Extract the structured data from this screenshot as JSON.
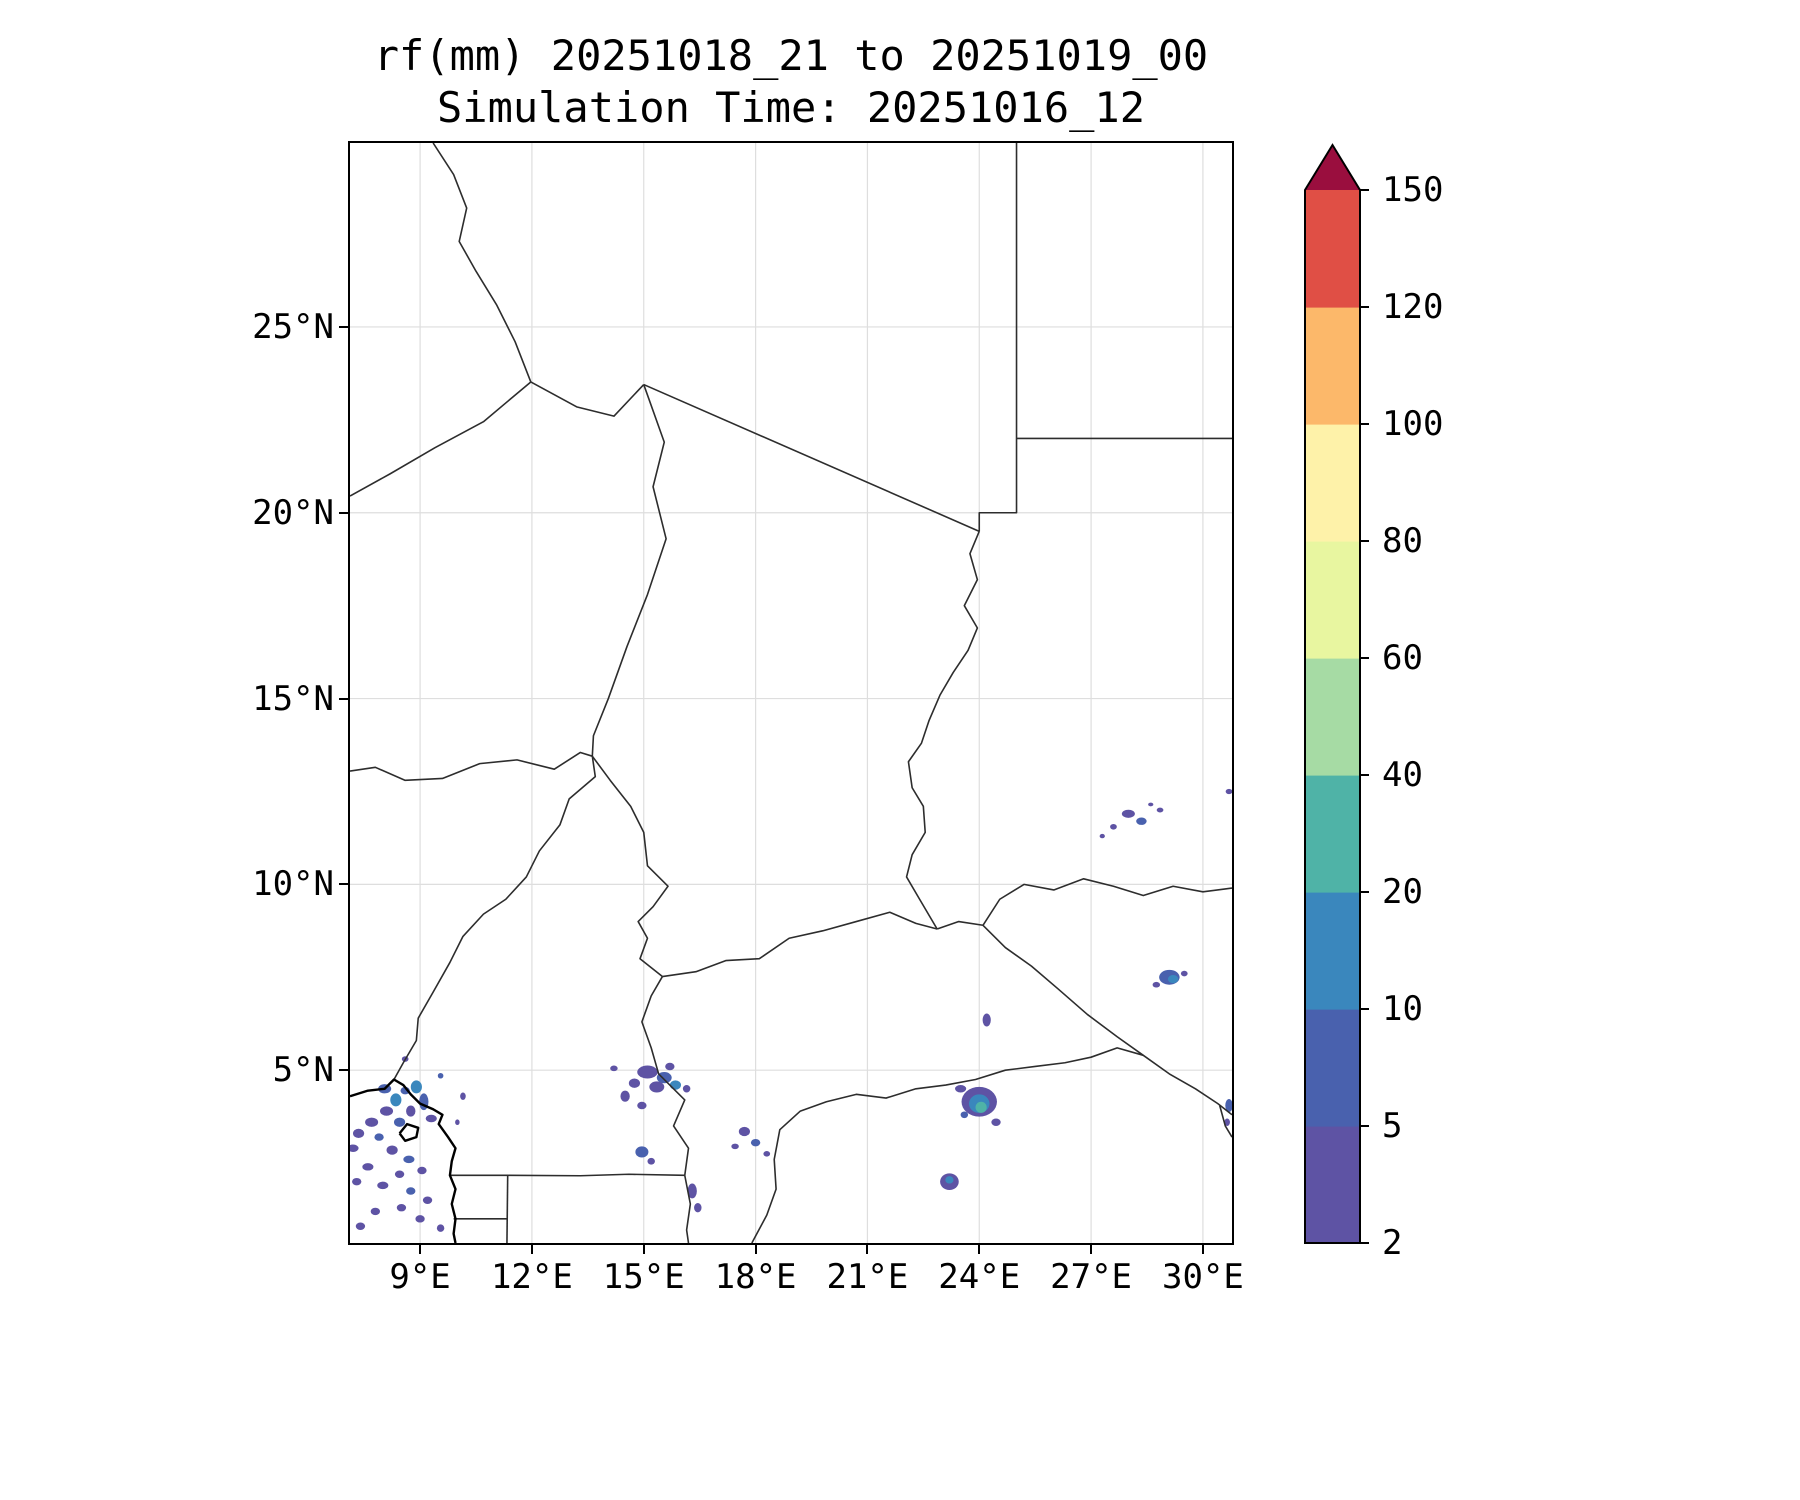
{
  "title": {
    "line1": "rf(mm) 20251018_21 to 20251019_00",
    "line2": "Simulation Time: 20251016_12"
  },
  "colors": {
    "background": "#ffffff",
    "grid": "#dedede",
    "border_line": "#2d2d2d",
    "coast_line": "#000000",
    "spine": "#000000"
  },
  "chart_data": {
    "type": "heatmap",
    "title": "rf(mm) 20251018_21 to 20251019_00",
    "subtitle": "Simulation Time: 20251016_12",
    "variable": "rf",
    "units": "mm",
    "grid": true,
    "lon_range": [
      7.12,
      30.78
    ],
    "lat_range": [
      0.35,
      29.95
    ],
    "x_ticks": [
      {
        "v": 9,
        "t": "9°E"
      },
      {
        "v": 12,
        "t": "12°E"
      },
      {
        "v": 15,
        "t": "15°E"
      },
      {
        "v": 18,
        "t": "18°E"
      },
      {
        "v": 21,
        "t": "21°E"
      },
      {
        "v": 24,
        "t": "24°E"
      },
      {
        "v": 27,
        "t": "27°E"
      },
      {
        "v": 30,
        "t": "30°E"
      }
    ],
    "y_ticks": [
      {
        "v": 5,
        "t": "5°N"
      },
      {
        "v": 10,
        "t": "10°N"
      },
      {
        "v": 15,
        "t": "15°N"
      },
      {
        "v": 20,
        "t": "20°N"
      },
      {
        "v": 25,
        "t": "25°N"
      }
    ],
    "colorbar": {
      "orientation": "vertical",
      "levels": [
        2,
        5,
        10,
        20,
        40,
        60,
        80,
        100,
        120,
        150
      ],
      "labels": [
        "2",
        "5",
        "10",
        "20",
        "40",
        "60",
        "80",
        "100",
        "120",
        "150"
      ],
      "colors": [
        "#5e53a4",
        "#4961ae",
        "#3a87bd",
        "#4fb3a7",
        "#a6dba4",
        "#e8f6a0",
        "#fef2a9",
        "#fcb86a",
        "#e04f45"
      ],
      "over_color": "#9a0e3e"
    },
    "borders": [
      [
        [
          9.35,
          29.95
        ],
        [
          9.9,
          29.1
        ],
        [
          10.25,
          28.2
        ],
        [
          10.05,
          27.3
        ],
        [
          10.5,
          26.5
        ],
        [
          11.05,
          25.6
        ],
        [
          11.55,
          24.6
        ],
        [
          11.97,
          23.52
        ]
      ],
      [
        [
          7.12,
          20.45
        ],
        [
          8.2,
          21.05
        ],
        [
          9.4,
          21.75
        ],
        [
          10.7,
          22.45
        ],
        [
          11.97,
          23.52
        ]
      ],
      [
        [
          11.97,
          23.52
        ],
        [
          13.2,
          22.85
        ],
        [
          14.2,
          22.6
        ],
        [
          15.0,
          23.45
        ]
      ],
      [
        [
          15.0,
          23.45
        ],
        [
          24.0,
          19.5
        ]
      ],
      [
        [
          25.0,
          29.95
        ],
        [
          25.0,
          22.0
        ]
      ],
      [
        [
          25.0,
          22.0
        ],
        [
          30.78,
          22.0
        ]
      ],
      [
        [
          25.0,
          22.0
        ],
        [
          25.0,
          20.0
        ],
        [
          24.0,
          20.0
        ],
        [
          24.0,
          19.5
        ]
      ],
      [
        [
          24.0,
          19.5
        ],
        [
          23.75,
          18.9
        ],
        [
          23.95,
          18.2
        ],
        [
          23.6,
          17.5
        ],
        [
          23.95,
          16.9
        ],
        [
          23.7,
          16.3
        ],
        [
          23.3,
          15.7
        ],
        [
          22.95,
          15.1
        ],
        [
          22.65,
          14.4
        ],
        [
          22.45,
          13.8
        ],
        [
          22.1,
          13.3
        ],
        [
          22.2,
          12.6
        ],
        [
          22.5,
          12.1
        ],
        [
          22.55,
          11.4
        ],
        [
          22.2,
          10.8
        ],
        [
          22.05,
          10.2
        ],
        [
          22.4,
          9.6
        ],
        [
          22.87,
          8.8
        ]
      ],
      [
        [
          15.0,
          23.45
        ],
        [
          15.55,
          21.9
        ],
        [
          15.25,
          20.7
        ],
        [
          15.6,
          19.3
        ],
        [
          15.1,
          17.8
        ],
        [
          14.55,
          16.4
        ],
        [
          14.05,
          15.0
        ],
        [
          13.65,
          14.0
        ],
        [
          13.62,
          13.45
        ]
      ],
      [
        [
          7.12,
          13.05
        ],
        [
          7.8,
          13.15
        ],
        [
          8.6,
          12.8
        ],
        [
          9.6,
          12.85
        ],
        [
          10.6,
          13.25
        ],
        [
          11.6,
          13.35
        ],
        [
          12.6,
          13.1
        ],
        [
          13.3,
          13.55
        ],
        [
          13.62,
          13.45
        ]
      ],
      [
        [
          13.62,
          13.45
        ],
        [
          14.1,
          12.8
        ],
        [
          14.65,
          12.1
        ],
        [
          15.0,
          11.4
        ],
        [
          15.1,
          10.5
        ],
        [
          15.65,
          9.95
        ],
        [
          15.25,
          9.4
        ],
        [
          14.85,
          9.0
        ],
        [
          15.1,
          8.55
        ],
        [
          14.9,
          8.0
        ],
        [
          15.5,
          7.52
        ]
      ],
      [
        [
          13.62,
          13.45
        ],
        [
          13.7,
          12.9
        ],
        [
          13.0,
          12.3
        ],
        [
          12.75,
          11.6
        ],
        [
          12.2,
          10.9
        ],
        [
          11.85,
          10.2
        ],
        [
          11.3,
          9.6
        ],
        [
          10.7,
          9.2
        ],
        [
          10.15,
          8.6
        ],
        [
          9.8,
          7.9
        ],
        [
          9.35,
          7.1
        ],
        [
          8.95,
          6.4
        ],
        [
          8.9,
          5.8
        ],
        [
          8.55,
          5.2
        ],
        [
          8.3,
          4.75
        ]
      ],
      [
        [
          9.8,
          2.17
        ],
        [
          11.35,
          2.17
        ],
        [
          13.3,
          2.16
        ],
        [
          14.6,
          2.2
        ],
        [
          16.1,
          2.17
        ]
      ],
      [
        [
          11.35,
          2.17
        ],
        [
          11.33,
          0.35
        ]
      ],
      [
        [
          9.9,
          1.0
        ],
        [
          11.33,
          1.0
        ]
      ],
      [
        [
          16.1,
          2.17
        ],
        [
          16.25,
          1.4
        ],
        [
          16.15,
          0.7
        ],
        [
          16.2,
          0.35
        ]
      ],
      [
        [
          16.1,
          2.17
        ],
        [
          16.2,
          2.9
        ],
        [
          15.8,
          3.5
        ],
        [
          16.1,
          4.2
        ],
        [
          15.4,
          4.9
        ],
        [
          15.2,
          5.6
        ],
        [
          14.95,
          6.3
        ],
        [
          15.2,
          7.0
        ],
        [
          15.5,
          7.52
        ]
      ],
      [
        [
          15.5,
          7.52
        ],
        [
          16.4,
          7.65
        ],
        [
          17.2,
          7.95
        ],
        [
          18.1,
          8.0
        ],
        [
          18.9,
          8.55
        ],
        [
          19.8,
          8.75
        ],
        [
          20.7,
          9.0
        ],
        [
          21.6,
          9.25
        ],
        [
          22.3,
          8.95
        ],
        [
          22.87,
          8.8
        ]
      ],
      [
        [
          22.87,
          8.8
        ],
        [
          23.45,
          9.0
        ],
        [
          24.1,
          8.9
        ]
      ],
      [
        [
          24.1,
          8.9
        ],
        [
          24.55,
          9.6
        ],
        [
          25.2,
          10.0
        ],
        [
          26.0,
          9.85
        ],
        [
          26.8,
          10.15
        ],
        [
          27.6,
          9.95
        ],
        [
          28.4,
          9.7
        ],
        [
          29.2,
          9.95
        ],
        [
          30.0,
          9.8
        ],
        [
          30.78,
          9.9
        ]
      ],
      [
        [
          24.1,
          8.9
        ],
        [
          24.7,
          8.3
        ],
        [
          25.4,
          7.8
        ],
        [
          26.1,
          7.2
        ],
        [
          26.9,
          6.5
        ],
        [
          27.7,
          5.9
        ],
        [
          28.4,
          5.4
        ],
        [
          29.1,
          4.9
        ],
        [
          29.8,
          4.5
        ],
        [
          30.4,
          4.1
        ],
        [
          30.78,
          3.8
        ]
      ],
      [
        [
          17.9,
          0.35
        ],
        [
          18.3,
          1.1
        ],
        [
          18.55,
          1.8
        ],
        [
          18.5,
          2.6
        ],
        [
          18.65,
          3.4
        ],
        [
          19.2,
          3.9
        ],
        [
          19.9,
          4.15
        ],
        [
          20.7,
          4.35
        ],
        [
          21.5,
          4.25
        ],
        [
          22.3,
          4.5
        ],
        [
          23.1,
          4.6
        ],
        [
          23.9,
          4.75
        ],
        [
          24.7,
          5.0
        ],
        [
          25.5,
          5.1
        ],
        [
          26.3,
          5.2
        ],
        [
          27.0,
          5.35
        ],
        [
          27.7,
          5.6
        ],
        [
          28.4,
          5.4
        ]
      ],
      [
        [
          30.45,
          4.05
        ],
        [
          30.6,
          3.5
        ],
        [
          30.78,
          3.2
        ]
      ]
    ],
    "coasts": [
      [
        [
          7.12,
          4.3
        ],
        [
          7.6,
          4.45
        ],
        [
          8.05,
          4.5
        ],
        [
          8.3,
          4.75
        ],
        [
          8.55,
          4.6
        ],
        [
          8.75,
          4.35
        ],
        [
          9.0,
          4.1
        ],
        [
          9.35,
          3.95
        ],
        [
          9.6,
          3.8
        ],
        [
          9.5,
          3.55
        ],
        [
          9.75,
          3.2
        ],
        [
          9.95,
          2.9
        ],
        [
          9.85,
          2.55
        ],
        [
          9.8,
          2.17
        ],
        [
          9.95,
          1.8
        ],
        [
          9.85,
          1.4
        ],
        [
          9.95,
          1.0
        ],
        [
          9.9,
          0.6
        ],
        [
          9.95,
          0.35
        ]
      ],
      [
        [
          8.45,
          3.3
        ],
        [
          8.65,
          3.55
        ],
        [
          8.95,
          3.45
        ],
        [
          8.9,
          3.2
        ],
        [
          8.6,
          3.1
        ],
        [
          8.45,
          3.3
        ]
      ]
    ],
    "rain_cells": [
      [
        8.05,
        4.5,
        0.35,
        0.25,
        1
      ],
      [
        8.35,
        4.2,
        0.3,
        0.35,
        2
      ],
      [
        8.6,
        4.45,
        0.25,
        0.2,
        1
      ],
      [
        8.9,
        4.55,
        0.3,
        0.35,
        2
      ],
      [
        9.1,
        4.15,
        0.25,
        0.45,
        1
      ],
      [
        8.75,
        3.9,
        0.25,
        0.3,
        0
      ],
      [
        9.3,
        3.7,
        0.3,
        0.2,
        0
      ],
      [
        8.45,
        3.6,
        0.3,
        0.25,
        1
      ],
      [
        8.1,
        3.9,
        0.35,
        0.25,
        0
      ],
      [
        7.7,
        3.6,
        0.35,
        0.25,
        0
      ],
      [
        7.35,
        3.3,
        0.3,
        0.25,
        0
      ],
      [
        7.2,
        2.9,
        0.3,
        0.2,
        0
      ],
      [
        7.9,
        3.2,
        0.25,
        0.2,
        1
      ],
      [
        8.25,
        2.85,
        0.3,
        0.25,
        0
      ],
      [
        8.7,
        2.6,
        0.3,
        0.2,
        1
      ],
      [
        9.05,
        2.3,
        0.25,
        0.2,
        0
      ],
      [
        8.45,
        2.2,
        0.25,
        0.2,
        0
      ],
      [
        7.6,
        2.4,
        0.3,
        0.2,
        0
      ],
      [
        7.3,
        2.0,
        0.25,
        0.2,
        0
      ],
      [
        8.0,
        1.9,
        0.3,
        0.2,
        0
      ],
      [
        8.75,
        1.75,
        0.25,
        0.2,
        1
      ],
      [
        9.2,
        1.5,
        0.25,
        0.2,
        0
      ],
      [
        8.5,
        1.3,
        0.25,
        0.2,
        0
      ],
      [
        9.0,
        1.0,
        0.25,
        0.2,
        0
      ],
      [
        9.55,
        0.75,
        0.2,
        0.2,
        0
      ],
      [
        7.8,
        1.2,
        0.25,
        0.2,
        0
      ],
      [
        7.4,
        0.8,
        0.25,
        0.2,
        0
      ],
      [
        8.6,
        5.3,
        0.18,
        0.15,
        0
      ],
      [
        9.55,
        4.85,
        0.15,
        0.15,
        1
      ],
      [
        10.15,
        4.3,
        0.15,
        0.2,
        0
      ],
      [
        10.0,
        3.6,
        0.12,
        0.15,
        0
      ],
      [
        15.1,
        4.95,
        0.55,
        0.35,
        0
      ],
      [
        15.55,
        4.8,
        0.4,
        0.3,
        1
      ],
      [
        15.85,
        4.6,
        0.3,
        0.25,
        2
      ],
      [
        15.35,
        4.55,
        0.4,
        0.3,
        0
      ],
      [
        14.75,
        4.65,
        0.3,
        0.25,
        0
      ],
      [
        14.5,
        4.3,
        0.25,
        0.3,
        0
      ],
      [
        14.95,
        4.05,
        0.25,
        0.2,
        0
      ],
      [
        16.15,
        4.5,
        0.2,
        0.2,
        0
      ],
      [
        14.2,
        5.05,
        0.2,
        0.15,
        0
      ],
      [
        15.7,
        5.1,
        0.25,
        0.2,
        0
      ],
      [
        14.95,
        2.8,
        0.35,
        0.3,
        1
      ],
      [
        15.2,
        2.55,
        0.2,
        0.18,
        0
      ],
      [
        16.3,
        1.75,
        0.25,
        0.4,
        0
      ],
      [
        16.45,
        1.3,
        0.2,
        0.25,
        0
      ],
      [
        17.7,
        3.35,
        0.3,
        0.25,
        0
      ],
      [
        18.0,
        3.05,
        0.25,
        0.2,
        1
      ],
      [
        17.45,
        2.95,
        0.2,
        0.15,
        0
      ],
      [
        18.3,
        2.75,
        0.18,
        0.15,
        0
      ],
      [
        24.0,
        4.15,
        0.95,
        0.8,
        0
      ],
      [
        24.0,
        4.1,
        0.55,
        0.5,
        2
      ],
      [
        24.05,
        4.0,
        0.3,
        0.3,
        3
      ],
      [
        23.5,
        4.5,
        0.3,
        0.2,
        0
      ],
      [
        24.45,
        3.6,
        0.25,
        0.2,
        0
      ],
      [
        23.6,
        3.8,
        0.2,
        0.18,
        1
      ],
      [
        23.2,
        2.0,
        0.5,
        0.45,
        0
      ],
      [
        23.2,
        2.05,
        0.22,
        0.2,
        2
      ],
      [
        24.2,
        6.35,
        0.22,
        0.35,
        0
      ],
      [
        29.1,
        7.5,
        0.55,
        0.4,
        1
      ],
      [
        29.2,
        7.45,
        0.28,
        0.22,
        2
      ],
      [
        28.75,
        7.3,
        0.2,
        0.15,
        0
      ],
      [
        29.5,
        7.6,
        0.18,
        0.15,
        0
      ],
      [
        28.0,
        11.9,
        0.35,
        0.22,
        0
      ],
      [
        28.35,
        11.7,
        0.28,
        0.2,
        1
      ],
      [
        27.6,
        11.55,
        0.18,
        0.15,
        0
      ],
      [
        28.85,
        12.0,
        0.18,
        0.13,
        0
      ],
      [
        27.3,
        11.3,
        0.14,
        0.12,
        0
      ],
      [
        28.6,
        12.15,
        0.14,
        0.1,
        0
      ],
      [
        30.7,
        12.5,
        0.18,
        0.14,
        0
      ],
      [
        30.7,
        4.05,
        0.2,
        0.35,
        1
      ],
      [
        30.65,
        3.6,
        0.15,
        0.2,
        0
      ]
    ]
  }
}
